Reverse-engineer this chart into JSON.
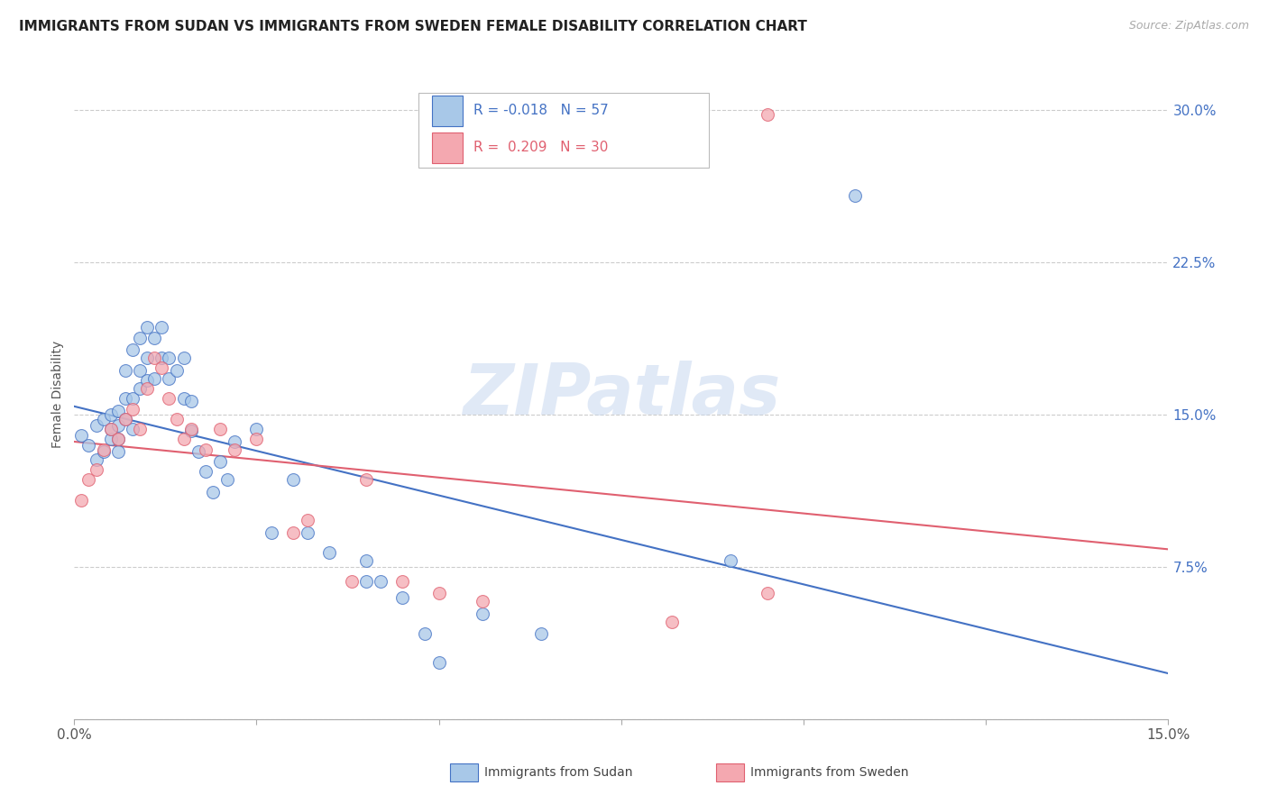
{
  "title": "IMMIGRANTS FROM SUDAN VS IMMIGRANTS FROM SWEDEN FEMALE DISABILITY CORRELATION CHART",
  "source": "Source: ZipAtlas.com",
  "ylabel": "Female Disability",
  "xlim": [
    0.0,
    0.15
  ],
  "ylim": [
    0.0,
    0.32
  ],
  "r_sudan": -0.018,
  "n_sudan": 57,
  "r_sweden": 0.209,
  "n_sweden": 30,
  "color_sudan": "#a8c8e8",
  "color_sweden": "#f4a8b0",
  "line_color_sudan": "#4472c4",
  "line_color_sweden": "#e06070",
  "watermark": "ZIPatlas",
  "legend_label_sudan": "Immigrants from Sudan",
  "legend_label_sweden": "Immigrants from Sweden",
  "sudan_x": [
    0.001,
    0.002,
    0.003,
    0.003,
    0.004,
    0.004,
    0.005,
    0.005,
    0.005,
    0.006,
    0.006,
    0.006,
    0.006,
    0.007,
    0.007,
    0.007,
    0.008,
    0.008,
    0.008,
    0.009,
    0.009,
    0.009,
    0.01,
    0.01,
    0.01,
    0.011,
    0.011,
    0.012,
    0.012,
    0.013,
    0.013,
    0.014,
    0.015,
    0.015,
    0.016,
    0.016,
    0.017,
    0.018,
    0.019,
    0.02,
    0.021,
    0.022,
    0.025,
    0.027,
    0.03,
    0.032,
    0.035,
    0.04,
    0.04,
    0.042,
    0.045,
    0.048,
    0.05,
    0.056,
    0.064,
    0.09,
    0.107
  ],
  "sudan_y": [
    0.14,
    0.135,
    0.145,
    0.128,
    0.148,
    0.132,
    0.138,
    0.143,
    0.15,
    0.132,
    0.138,
    0.145,
    0.152,
    0.148,
    0.158,
    0.172,
    0.143,
    0.158,
    0.182,
    0.163,
    0.172,
    0.188,
    0.167,
    0.178,
    0.193,
    0.168,
    0.188,
    0.178,
    0.193,
    0.168,
    0.178,
    0.172,
    0.178,
    0.158,
    0.157,
    0.142,
    0.132,
    0.122,
    0.112,
    0.127,
    0.118,
    0.137,
    0.143,
    0.092,
    0.118,
    0.092,
    0.082,
    0.078,
    0.068,
    0.068,
    0.06,
    0.042,
    0.028,
    0.052,
    0.042,
    0.078,
    0.258
  ],
  "sweden_x": [
    0.001,
    0.002,
    0.003,
    0.004,
    0.005,
    0.006,
    0.007,
    0.008,
    0.009,
    0.01,
    0.011,
    0.012,
    0.013,
    0.014,
    0.015,
    0.016,
    0.018,
    0.02,
    0.022,
    0.025,
    0.03,
    0.032,
    0.038,
    0.04,
    0.045,
    0.05,
    0.056,
    0.082,
    0.095,
    0.095
  ],
  "sweden_y": [
    0.108,
    0.118,
    0.123,
    0.133,
    0.143,
    0.138,
    0.148,
    0.153,
    0.143,
    0.163,
    0.178,
    0.173,
    0.158,
    0.148,
    0.138,
    0.143,
    0.133,
    0.143,
    0.133,
    0.138,
    0.092,
    0.098,
    0.068,
    0.118,
    0.068,
    0.062,
    0.058,
    0.048,
    0.298,
    0.062
  ],
  "grid_color": "#cccccc",
  "background_color": "#ffffff",
  "title_fontsize": 11,
  "axis_label_fontsize": 10,
  "tick_fontsize": 11,
  "right_tick_color": "#4472c4"
}
